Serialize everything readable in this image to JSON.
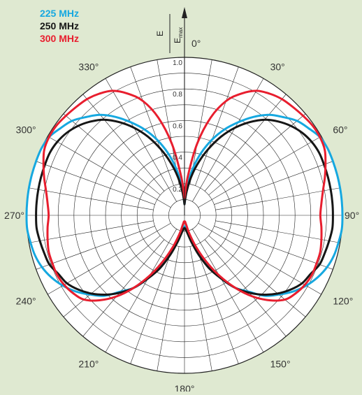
{
  "chart_data": {
    "type": "polar",
    "title": "",
    "radial_axis": {
      "label": {
        "numerator": "E",
        "denominator": "E",
        "denominator_sub": "max"
      },
      "range": [
        0,
        1
      ],
      "ticks": [
        {
          "value": 0.2,
          "label": "0.2"
        },
        {
          "value": 0.4,
          "label": "0.4"
        },
        {
          "value": 0.6,
          "label": "0.6"
        },
        {
          "value": 0.8,
          "label": "0.8"
        },
        {
          "value": 1.0,
          "label": "1.0"
        }
      ],
      "rings": [
        0.1,
        0.2,
        0.3,
        0.4,
        0.5,
        0.6,
        0.7,
        0.8,
        0.9,
        1.0
      ]
    },
    "angular_axis": {
      "direction": "clockwise",
      "zero_at": "top",
      "spoke_step_deg": 10,
      "labels": [
        {
          "deg": 0,
          "text": "0°"
        },
        {
          "deg": 30,
          "text": "30°"
        },
        {
          "deg": 60,
          "text": "60°"
        },
        {
          "deg": 90,
          "text": "90°"
        },
        {
          "deg": 120,
          "text": "120°"
        },
        {
          "deg": 150,
          "text": "150°"
        },
        {
          "deg": 180,
          "text": "180°"
        },
        {
          "deg": 210,
          "text": "210°"
        },
        {
          "deg": 240,
          "text": "240°"
        },
        {
          "deg": 270,
          "text": "270°"
        },
        {
          "deg": 300,
          "text": "300°"
        },
        {
          "deg": 330,
          "text": "330°"
        }
      ]
    },
    "legend_position": "top-left",
    "series": [
      {
        "name": "225 MHz",
        "color": "#16a8e0",
        "theta": [
          0,
          5,
          10,
          15,
          20,
          25,
          30,
          35,
          40,
          45,
          50,
          55,
          60,
          65,
          70,
          75,
          80,
          85,
          90,
          95,
          100,
          105,
          110,
          115,
          120,
          125,
          130,
          135,
          140,
          145,
          150,
          155,
          160,
          165,
          170,
          175,
          180
        ],
        "r": [
          0.07,
          0.18,
          0.3,
          0.41,
          0.51,
          0.6,
          0.68,
          0.76,
          0.83,
          0.88,
          0.93,
          0.96,
          0.99,
          1.0,
          1.0,
          1.0,
          1.0,
          1.0,
          1.0,
          1.0,
          0.99,
          0.98,
          0.96,
          0.93,
          0.89,
          0.84,
          0.78,
          0.72,
          0.63,
          0.56,
          0.46,
          0.35,
          0.25,
          0.17,
          0.11,
          0.08,
          0.07
        ]
      },
      {
        "name": "250 MHz",
        "color": "#161616",
        "theta": [
          0,
          5,
          10,
          15,
          20,
          25,
          30,
          35,
          40,
          45,
          50,
          55,
          60,
          65,
          70,
          75,
          80,
          85,
          90,
          95,
          100,
          105,
          110,
          115,
          120,
          125,
          130,
          135,
          140,
          145,
          150,
          155,
          160,
          165,
          170,
          175,
          180
        ],
        "r": [
          0.07,
          0.15,
          0.25,
          0.35,
          0.45,
          0.55,
          0.64,
          0.72,
          0.79,
          0.84,
          0.88,
          0.91,
          0.93,
          0.94,
          0.94,
          0.94,
          0.94,
          0.94,
          0.94,
          0.94,
          0.93,
          0.92,
          0.91,
          0.88,
          0.86,
          0.82,
          0.77,
          0.71,
          0.64,
          0.56,
          0.46,
          0.37,
          0.27,
          0.18,
          0.12,
          0.09,
          0.08
        ]
      },
      {
        "name": "300 MHz",
        "color": "#e81e2e",
        "theta": [
          0,
          5,
          10,
          15,
          20,
          25,
          30,
          35,
          40,
          45,
          50,
          55,
          60,
          65,
          70,
          75,
          80,
          85,
          90,
          95,
          100,
          105,
          110,
          115,
          120,
          125,
          130,
          135,
          140,
          145,
          150,
          155,
          160,
          165,
          170,
          175,
          180
        ],
        "r": [
          0.11,
          0.25,
          0.46,
          0.64,
          0.77,
          0.85,
          0.91,
          0.94,
          0.96,
          0.97,
          0.98,
          0.99,
          0.99,
          0.98,
          0.95,
          0.92,
          0.89,
          0.87,
          0.86,
          0.87,
          0.88,
          0.89,
          0.89,
          0.89,
          0.88,
          0.86,
          0.83,
          0.76,
          0.67,
          0.56,
          0.44,
          0.32,
          0.21,
          0.12,
          0.06,
          0.04,
          0.04
        ]
      }
    ]
  }
}
